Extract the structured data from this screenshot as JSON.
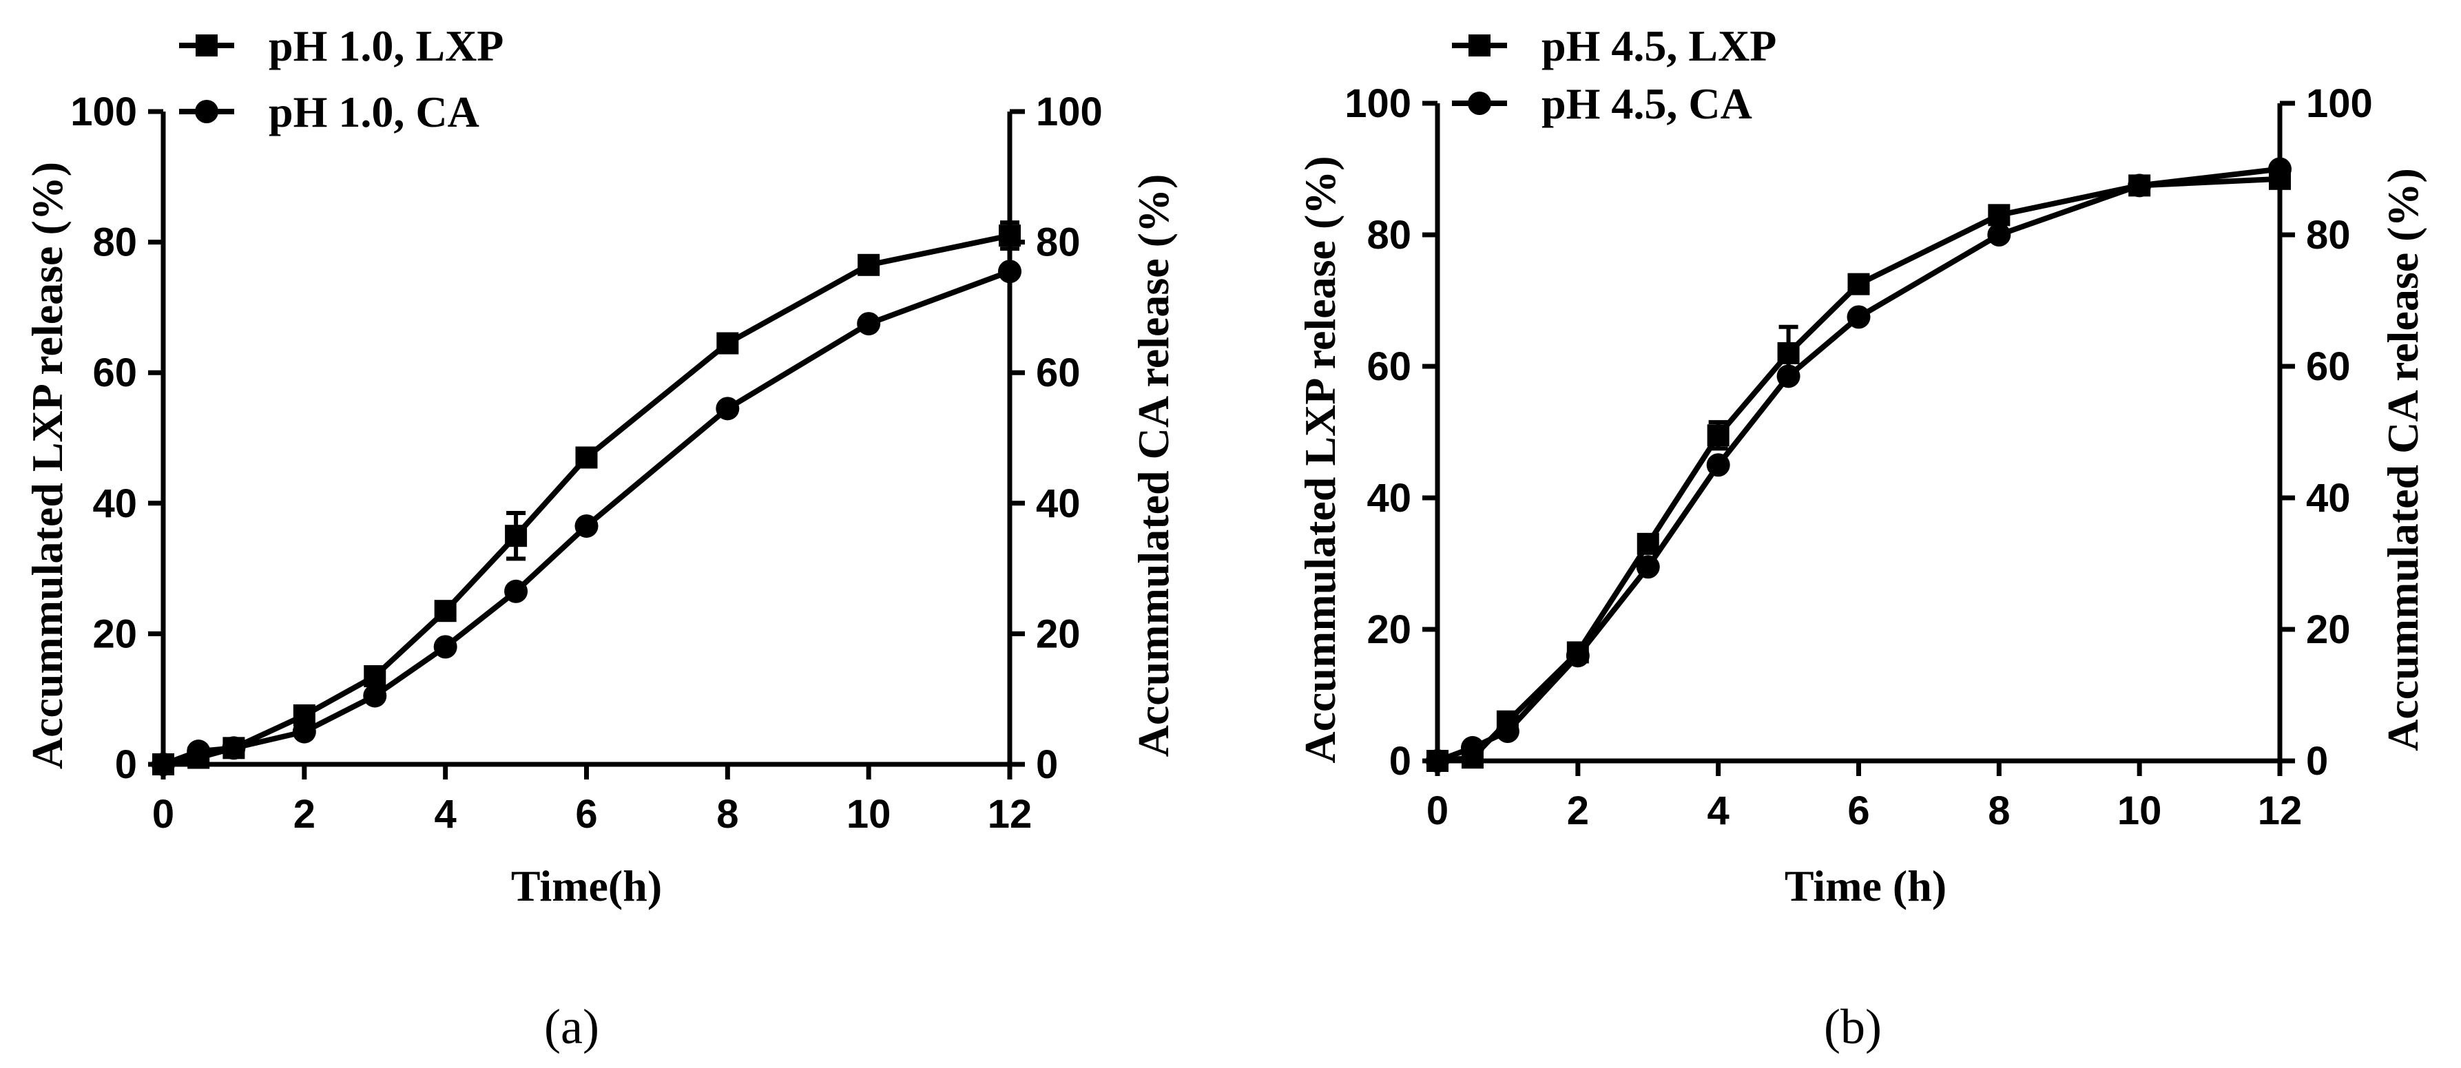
{
  "colors": {
    "ink": "#000000",
    "background": "#ffffff"
  },
  "chart_data": [
    {
      "type": "line",
      "panel_label": "(a)",
      "xlabel": "Time(h)",
      "ylabel": "Accummulated LXP release (%)",
      "y2label": "Accummulated CA release (%)",
      "xlim": [
        0,
        12
      ],
      "ylim": [
        0,
        100
      ],
      "y2lim": [
        0,
        100
      ],
      "xticks": [
        "0",
        "2",
        "4",
        "6",
        "8",
        "10",
        "12"
      ],
      "yticks": [
        "0",
        "20",
        "40",
        "60",
        "80",
        "100"
      ],
      "y2ticks": [
        "0",
        "20",
        "40",
        "60",
        "80",
        "100"
      ],
      "grid": false,
      "legend_position": "top-left",
      "x": [
        0,
        0.5,
        1,
        2,
        3,
        4,
        5,
        6,
        8,
        10,
        12
      ],
      "series": [
        {
          "name": "pH 1.0, LXP",
          "marker": "square",
          "values": [
            0,
            1,
            2.5,
            7.5,
            13.5,
            23.5,
            35,
            47,
            64.5,
            76.5,
            81
          ],
          "errors": [
            0.3,
            0.5,
            0.5,
            0.6,
            0.8,
            0.9,
            3.5,
            0.8,
            0.6,
            0.6,
            2.0
          ]
        },
        {
          "name": "pH 1.0, CA",
          "marker": "circle",
          "values": [
            0,
            2,
            2.5,
            5,
            10.5,
            18,
            26.5,
            36.5,
            54.5,
            67.5,
            75.5
          ],
          "errors": [
            0,
            0,
            0,
            0,
            0,
            0,
            0,
            0,
            0,
            0,
            0
          ]
        }
      ]
    },
    {
      "type": "line",
      "panel_label": "(b)",
      "xlabel": "Time (h)",
      "ylabel": "Accummulated LXP release (%)",
      "y2label": "Accummulated CA release (%)",
      "xlim": [
        0,
        12
      ],
      "ylim": [
        0,
        100
      ],
      "y2lim": [
        0,
        100
      ],
      "xticks": [
        "0",
        "2",
        "4",
        "6",
        "8",
        "10",
        "12"
      ],
      "yticks": [
        "0",
        "20",
        "40",
        "60",
        "80",
        "100"
      ],
      "y2ticks": [
        "0",
        "20",
        "40",
        "60",
        "80",
        "100"
      ],
      "grid": false,
      "legend_position": "top-left",
      "x": [
        0,
        0.5,
        1,
        2,
        3,
        4,
        5,
        6,
        8,
        10,
        12
      ],
      "series": [
        {
          "name": "pH 4.5, LXP",
          "marker": "square",
          "values": [
            0,
            0.5,
            6,
            16.5,
            33,
            49.5,
            62,
            72.5,
            83,
            87.5,
            88.5
          ],
          "errors": [
            0.3,
            0.5,
            0.8,
            0.8,
            1.0,
            2.0,
            4.0,
            1.2,
            0.8,
            0.5,
            0.6
          ]
        },
        {
          "name": "pH 4.5, CA",
          "marker": "circle",
          "values": [
            0,
            2,
            4.5,
            16,
            29.5,
            45,
            58.5,
            67.5,
            80,
            87.5,
            90
          ],
          "errors": [
            0,
            0,
            0,
            0,
            0,
            0,
            0,
            0,
            0,
            0,
            0
          ]
        }
      ]
    }
  ]
}
